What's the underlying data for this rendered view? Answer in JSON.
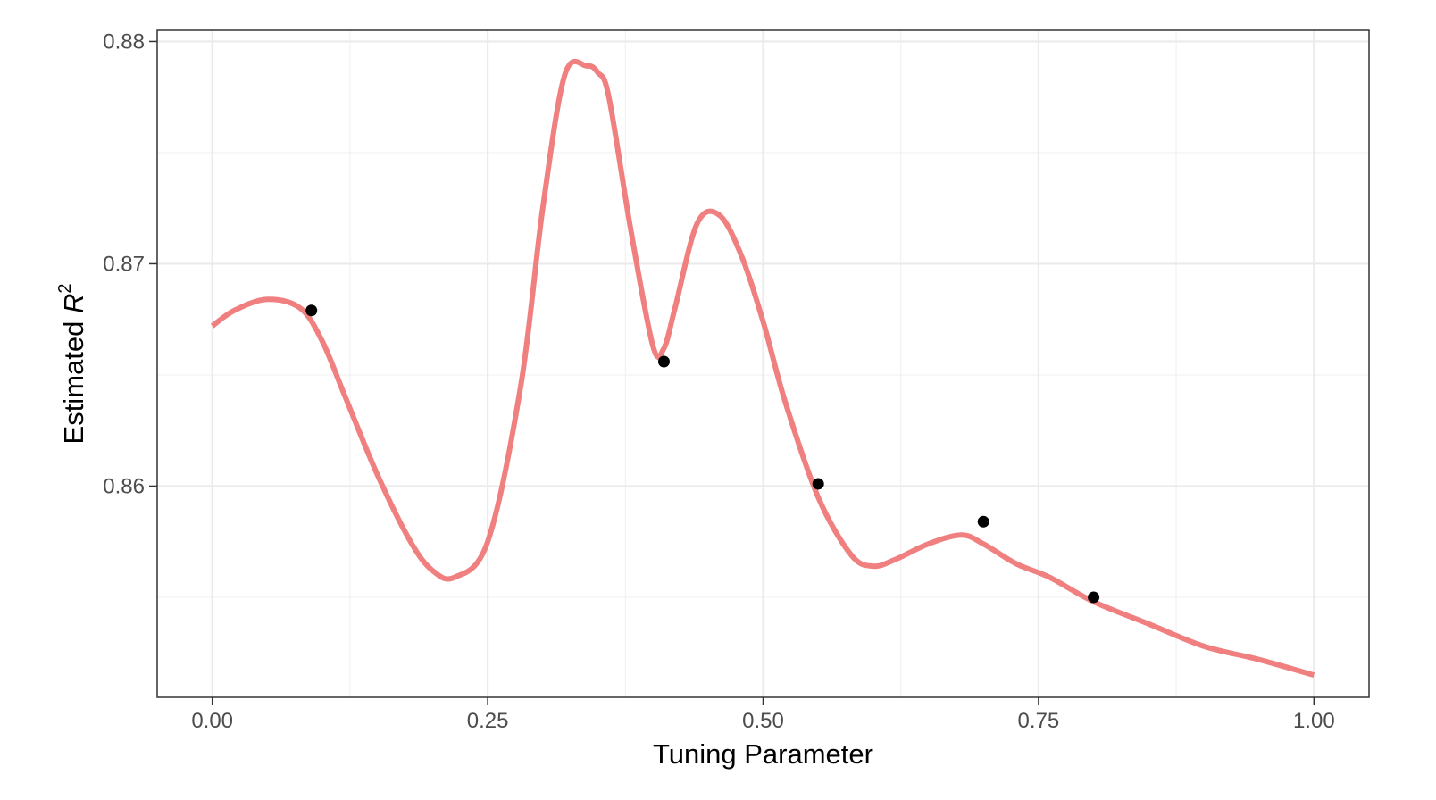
{
  "chart_data": {
    "type": "line",
    "title": "",
    "xlabel": "Tuning Parameter",
    "ylabel": {
      "text": "Estimated ",
      "symbol": "R",
      "superscript": "2"
    },
    "xlim": [
      -0.05,
      1.05
    ],
    "ylim": [
      0.8505,
      0.8805
    ],
    "x_ticks": [
      0.0,
      0.25,
      0.5,
      0.75,
      1.0
    ],
    "x_tick_labels": [
      "0.00",
      "0.25",
      "0.50",
      "0.75",
      "1.00"
    ],
    "y_ticks": [
      0.86,
      0.87,
      0.88
    ],
    "y_tick_labels": [
      "0.86",
      "0.87",
      "0.88"
    ],
    "y_minor_ticks": [
      0.855,
      0.865,
      0.875
    ],
    "x_minor_ticks": [
      0.125,
      0.375,
      0.625,
      0.875
    ],
    "grid": true,
    "theme": "bw",
    "series": [
      {
        "kind": "curve",
        "color": "#f08080",
        "x": [
          0.0,
          0.02,
          0.05,
          0.08,
          0.1,
          0.12,
          0.15,
          0.18,
          0.2,
          0.22,
          0.25,
          0.28,
          0.3,
          0.32,
          0.34,
          0.35,
          0.36,
          0.38,
          0.4,
          0.41,
          0.42,
          0.44,
          0.46,
          0.48,
          0.5,
          0.52,
          0.55,
          0.58,
          0.6,
          0.62,
          0.65,
          0.68,
          0.7,
          0.73,
          0.76,
          0.8,
          0.85,
          0.9,
          0.95,
          1.0
        ],
        "y": [
          0.8672,
          0.8679,
          0.8684,
          0.868,
          0.8665,
          0.8641,
          0.8605,
          0.8575,
          0.8562,
          0.8559,
          0.8575,
          0.8645,
          0.8725,
          0.8785,
          0.8789,
          0.8786,
          0.8775,
          0.8715,
          0.8663,
          0.8662,
          0.868,
          0.8718,
          0.8722,
          0.8704,
          0.8674,
          0.8638,
          0.8595,
          0.8569,
          0.8564,
          0.8567,
          0.8574,
          0.8578,
          0.8574,
          0.8565,
          0.8559,
          0.8548,
          0.8538,
          0.8528,
          0.8522,
          0.8515
        ]
      },
      {
        "kind": "points",
        "color": "#000000",
        "x": [
          0.09,
          0.41,
          0.55,
          0.7,
          0.8
        ],
        "y": [
          0.8679,
          0.8656,
          0.8601,
          0.8584,
          0.855
        ]
      }
    ]
  }
}
